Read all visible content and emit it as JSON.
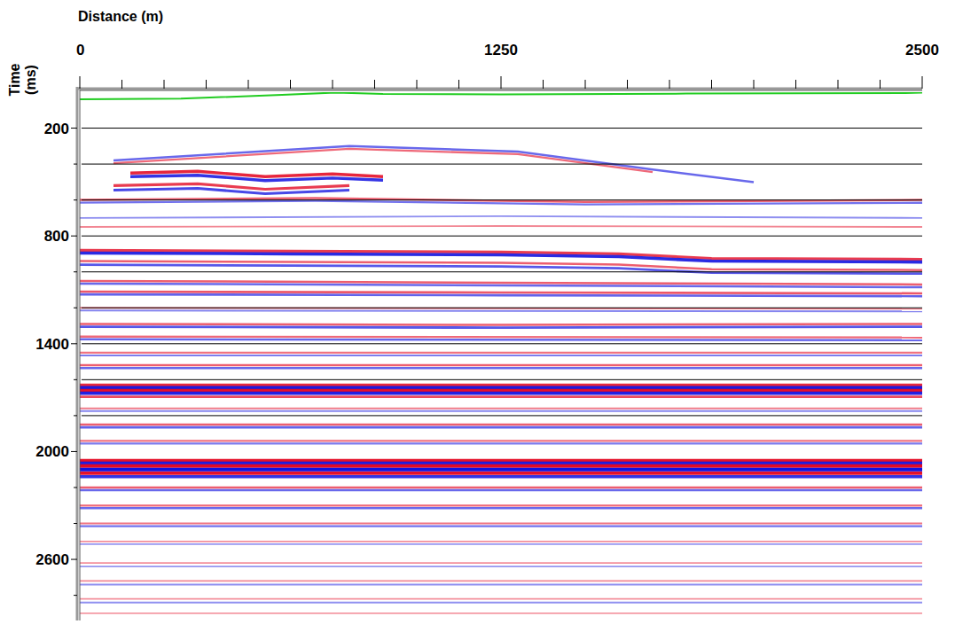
{
  "chart_data": {
    "type": "seismic",
    "x_label": "Distance (m)",
    "y_label": "Time (ms)",
    "xlim": [
      0,
      2500
    ],
    "ylim": [
      0,
      2940
    ],
    "xticks": [
      0,
      1250,
      2500
    ],
    "x_minor_ticks": [
      125,
      250,
      375,
      500,
      625,
      750,
      875,
      1000,
      1125,
      1375,
      1500,
      1625,
      1750,
      1875,
      2000,
      2125,
      2250,
      2375
    ],
    "yticks": [
      200,
      800,
      1400,
      2000,
      2600
    ],
    "y_minor_ticks": [
      400,
      600,
      1000,
      1200,
      1600,
      1800,
      2200,
      2400,
      2800
    ],
    "grid": true,
    "grid_lines": [
      200,
      400,
      600,
      800,
      1000,
      1200,
      1400,
      1600,
      1800
    ],
    "datum": {
      "color": "#22cc22",
      "x": [
        0,
        300,
        600,
        760,
        900,
        1250,
        1800,
        2450,
        2500
      ],
      "t": [
        40,
        36,
        15,
        2,
        10,
        12,
        8,
        5,
        2
      ]
    },
    "reflectors": [
      {
        "color": "blue",
        "x": [
          100,
          800,
          1300,
          1700,
          2000
        ],
        "t": [
          380,
          300,
          330,
          430,
          500
        ],
        "amplitude": 0.5
      },
      {
        "color": "red",
        "x": [
          100,
          800,
          1300,
          1700
        ],
        "t": [
          395,
          315,
          345,
          445
        ],
        "amplitude": 0.45
      },
      {
        "color": "red",
        "x": [
          150,
          350,
          550,
          750,
          900
        ],
        "t": [
          450,
          440,
          470,
          455,
          470
        ],
        "amplitude": 0.8
      },
      {
        "color": "blue",
        "x": [
          150,
          350,
          550,
          750,
          900
        ],
        "t": [
          470,
          462,
          492,
          478,
          490
        ],
        "amplitude": 0.8
      },
      {
        "color": "red",
        "x": [
          100,
          350,
          550,
          800
        ],
        "t": [
          520,
          510,
          540,
          520
        ],
        "amplitude": 0.7
      },
      {
        "color": "blue",
        "x": [
          100,
          350,
          550,
          800
        ],
        "t": [
          545,
          535,
          565,
          545
        ],
        "amplitude": 0.7
      },
      {
        "color": "red",
        "x": [
          0,
          700,
          1500,
          2500
        ],
        "t": [
          600,
          590,
          610,
          600
        ],
        "amplitude": 0.5
      },
      {
        "color": "blue",
        "x": [
          0,
          700,
          1500,
          2500
        ],
        "t": [
          615,
          605,
          625,
          615
        ],
        "amplitude": 0.45
      },
      {
        "color": "blue",
        "x": [
          0,
          1250,
          2500
        ],
        "t": [
          700,
          690,
          700
        ],
        "amplitude": 0.3
      },
      {
        "color": "red",
        "x": [
          0,
          1250,
          2500
        ],
        "t": [
          750,
          745,
          750
        ],
        "amplitude": 0.3
      },
      {
        "color": "red",
        "x": [
          0,
          625,
          1250,
          1600,
          1875,
          2500
        ],
        "t": [
          880,
          885,
          890,
          900,
          925,
          930
        ],
        "amplitude": 0.7
      },
      {
        "color": "blue",
        "x": [
          0,
          625,
          1250,
          1600,
          1875,
          2500
        ],
        "t": [
          895,
          900,
          905,
          915,
          940,
          945
        ],
        "amplitude": 0.85
      },
      {
        "color": "red",
        "x": [
          0,
          625,
          1250,
          1600,
          1875,
          2500
        ],
        "t": [
          940,
          945,
          950,
          960,
          985,
          990
        ],
        "amplitude": 0.5
      },
      {
        "color": "blue",
        "x": [
          0,
          625,
          1250,
          1600,
          1875,
          2500
        ],
        "t": [
          960,
          965,
          970,
          980,
          1005,
          1010
        ],
        "amplitude": 0.6
      },
      {
        "color": "red",
        "x": [
          0,
          1250,
          2500
        ],
        "t": [
          1050,
          1060,
          1070
        ],
        "amplitude": 0.5
      },
      {
        "color": "blue",
        "x": [
          0,
          1250,
          2500
        ],
        "t": [
          1065,
          1075,
          1085
        ],
        "amplitude": 0.5
      },
      {
        "color": "red",
        "x": [
          0,
          1250,
          2500
        ],
        "t": [
          1110,
          1115,
          1120
        ],
        "amplitude": 0.55
      },
      {
        "color": "blue",
        "x": [
          0,
          1250,
          2500
        ],
        "t": [
          1125,
          1130,
          1135
        ],
        "amplitude": 0.55
      },
      {
        "color": "red",
        "x": [
          0,
          2500
        ],
        "t": [
          1200,
          1205
        ],
        "amplitude": 0.35
      },
      {
        "color": "blue",
        "x": [
          0,
          2500
        ],
        "t": [
          1215,
          1220
        ],
        "amplitude": 0.35
      },
      {
        "color": "red",
        "x": [
          0,
          1250,
          2500
        ],
        "t": [
          1290,
          1295,
          1290
        ],
        "amplitude": 0.5
      },
      {
        "color": "blue",
        "x": [
          0,
          1250,
          2500
        ],
        "t": [
          1305,
          1310,
          1305
        ],
        "amplitude": 0.6
      },
      {
        "color": "red",
        "x": [
          0,
          2500
        ],
        "t": [
          1360,
          1365
        ],
        "amplitude": 0.45
      },
      {
        "color": "blue",
        "x": [
          0,
          2500
        ],
        "t": [
          1375,
          1380
        ],
        "amplitude": 0.5
      },
      {
        "color": "red",
        "x": [
          0,
          2500
        ],
        "t": [
          1450,
          1450
        ],
        "amplitude": 0.4
      },
      {
        "color": "blue",
        "x": [
          0,
          2500
        ],
        "t": [
          1465,
          1465
        ],
        "amplitude": 0.4
      },
      {
        "color": "red",
        "x": [
          0,
          2500
        ],
        "t": [
          1520,
          1520
        ],
        "amplitude": 0.5
      },
      {
        "color": "blue",
        "x": [
          0,
          2500
        ],
        "t": [
          1535,
          1535
        ],
        "amplitude": 0.5
      },
      {
        "color": "red",
        "x": [
          0,
          2500
        ],
        "t": [
          1630,
          1630
        ],
        "amplitude": 0.8
      },
      {
        "color": "blue",
        "x": [
          0,
          2500
        ],
        "t": [
          1645,
          1645
        ],
        "amplitude": 0.95
      },
      {
        "color": "red",
        "x": [
          0,
          2500
        ],
        "t": [
          1660,
          1660
        ],
        "amplitude": 0.9
      },
      {
        "color": "blue",
        "x": [
          0,
          2500
        ],
        "t": [
          1675,
          1675
        ],
        "amplitude": 0.9
      },
      {
        "color": "red",
        "x": [
          0,
          2500
        ],
        "t": [
          1695,
          1695
        ],
        "amplitude": 0.6
      },
      {
        "color": "red",
        "x": [
          0,
          2500
        ],
        "t": [
          1760,
          1760
        ],
        "amplitude": 0.35
      },
      {
        "color": "blue",
        "x": [
          0,
          2500
        ],
        "t": [
          1775,
          1775
        ],
        "amplitude": 0.35
      },
      {
        "color": "red",
        "x": [
          0,
          2500
        ],
        "t": [
          1850,
          1850
        ],
        "amplitude": 0.5
      },
      {
        "color": "blue",
        "x": [
          0,
          2500
        ],
        "t": [
          1865,
          1865
        ],
        "amplitude": 0.55
      },
      {
        "color": "red",
        "x": [
          0,
          2500
        ],
        "t": [
          1940,
          1940
        ],
        "amplitude": 0.4
      },
      {
        "color": "blue",
        "x": [
          0,
          2500
        ],
        "t": [
          1955,
          1955
        ],
        "amplitude": 0.4
      },
      {
        "color": "red",
        "x": [
          0,
          2500
        ],
        "t": [
          2050,
          2050
        ],
        "amplitude": 0.9
      },
      {
        "color": "blue",
        "x": [
          0,
          2500
        ],
        "t": [
          2065,
          2065
        ],
        "amplitude": 0.9
      },
      {
        "color": "red",
        "x": [
          0,
          2500
        ],
        "t": [
          2080,
          2080
        ],
        "amplitude": 0.95
      },
      {
        "color": "blue",
        "x": [
          0,
          2500
        ],
        "t": [
          2100,
          2100
        ],
        "amplitude": 1.0
      },
      {
        "color": "red",
        "x": [
          0,
          2500
        ],
        "t": [
          2120,
          2120
        ],
        "amplitude": 0.9
      },
      {
        "color": "blue",
        "x": [
          0,
          2500
        ],
        "t": [
          2140,
          2140
        ],
        "amplitude": 0.8
      },
      {
        "color": "red",
        "x": [
          0,
          2500
        ],
        "t": [
          2200,
          2200
        ],
        "amplitude": 0.5
      },
      {
        "color": "blue",
        "x": [
          0,
          2500
        ],
        "t": [
          2215,
          2215
        ],
        "amplitude": 0.5
      },
      {
        "color": "red",
        "x": [
          0,
          2500
        ],
        "t": [
          2300,
          2300
        ],
        "amplitude": 0.45
      },
      {
        "color": "blue",
        "x": [
          0,
          2500
        ],
        "t": [
          2315,
          2315
        ],
        "amplitude": 0.5
      },
      {
        "color": "red",
        "x": [
          0,
          2500
        ],
        "t": [
          2400,
          2400
        ],
        "amplitude": 0.4
      },
      {
        "color": "blue",
        "x": [
          0,
          2500
        ],
        "t": [
          2415,
          2415
        ],
        "amplitude": 0.45
      },
      {
        "color": "red",
        "x": [
          0,
          2500
        ],
        "t": [
          2500,
          2500
        ],
        "amplitude": 0.25
      },
      {
        "color": "blue",
        "x": [
          0,
          2500
        ],
        "t": [
          2515,
          2515
        ],
        "amplitude": 0.25
      },
      {
        "color": "red",
        "x": [
          0,
          2500
        ],
        "t": [
          2620,
          2620
        ],
        "amplitude": 0.25
      },
      {
        "color": "blue",
        "x": [
          0,
          2500
        ],
        "t": [
          2640,
          2640
        ],
        "amplitude": 0.25
      },
      {
        "color": "red",
        "x": [
          0,
          2500
        ],
        "t": [
          2720,
          2720
        ],
        "amplitude": 0.3
      },
      {
        "color": "blue",
        "x": [
          0,
          2500
        ],
        "t": [
          2740,
          2740
        ],
        "amplitude": 0.3
      },
      {
        "color": "red",
        "x": [
          0,
          2500
        ],
        "t": [
          2820,
          2820
        ],
        "amplitude": 0.25
      },
      {
        "color": "blue",
        "x": [
          0,
          2500
        ],
        "t": [
          2840,
          2840
        ],
        "amplitude": 0.3
      },
      {
        "color": "red",
        "x": [
          0,
          2500
        ],
        "t": [
          2900,
          2900
        ],
        "amplitude": 0.2
      }
    ]
  }
}
